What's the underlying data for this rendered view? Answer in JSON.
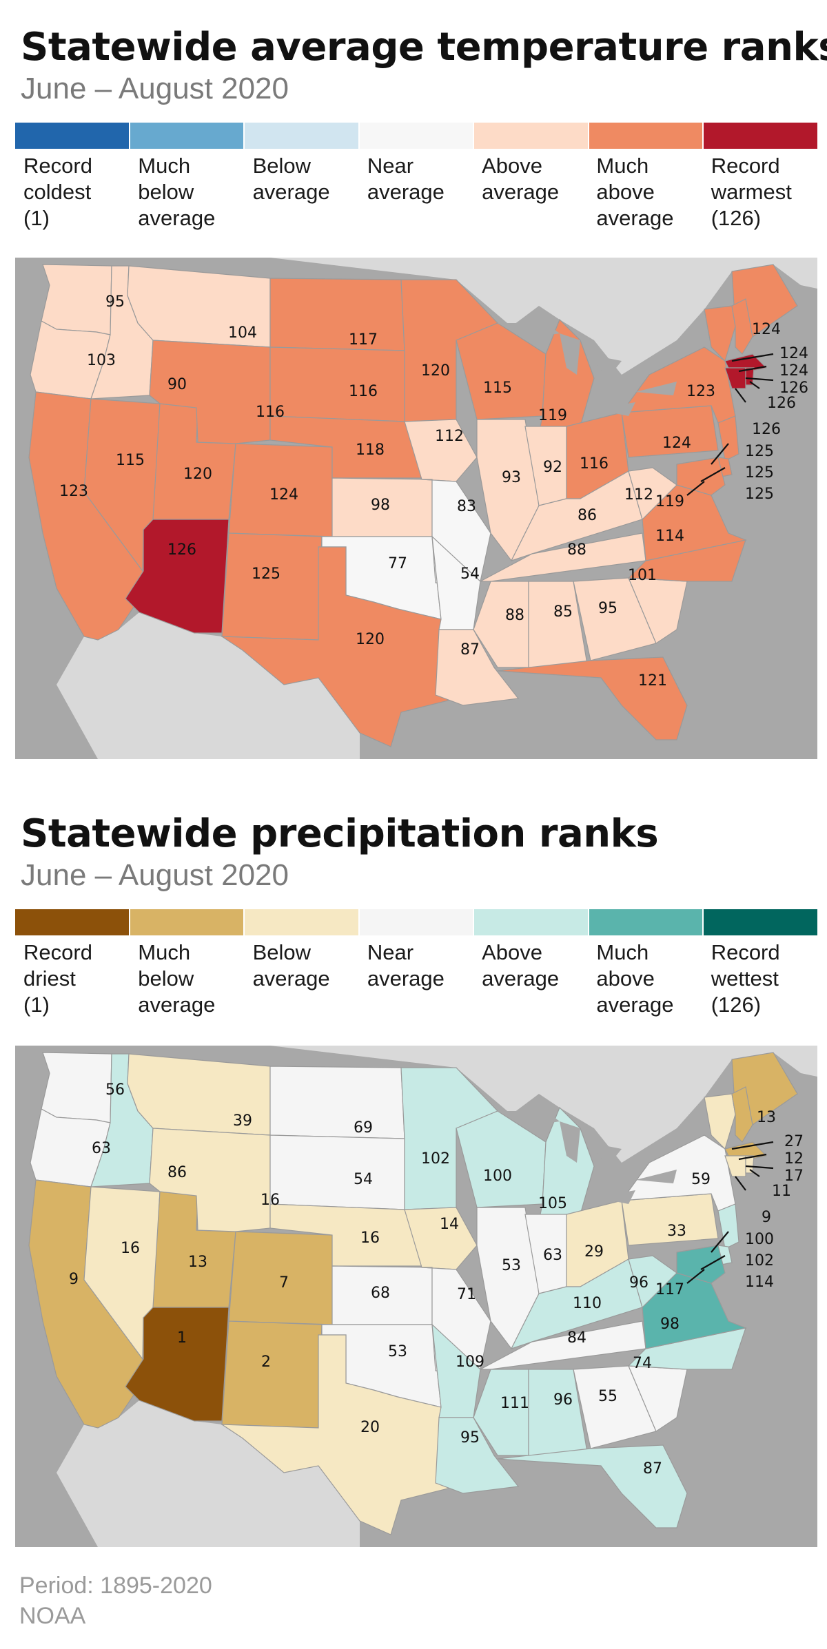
{
  "temperature": {
    "title": "Statewide average temperature ranks",
    "subtitle": "June – August 2020",
    "legend": [
      {
        "label": "Record\ncoldest\n(1)",
        "color": "#2166ac"
      },
      {
        "label": "Much\nbelow\naverage",
        "color": "#67a9cf"
      },
      {
        "label": "Below\naverage",
        "color": "#d1e5f0"
      },
      {
        "label": "Near\naverage",
        "color": "#f7f7f7"
      },
      {
        "label": "Above\naverage",
        "color": "#fddbc7"
      },
      {
        "label": "Much\nabove\naverage",
        "color": "#ef8a62"
      },
      {
        "label": "Record\nwarmest\n(126)",
        "color": "#b2182b"
      }
    ],
    "states": [
      {
        "state": "WA",
        "rank": "95",
        "category": 4
      },
      {
        "state": "OR",
        "rank": "103",
        "category": 4
      },
      {
        "state": "ID",
        "rank": "90",
        "category": 4
      },
      {
        "state": "MT",
        "rank": "104",
        "category": 4
      },
      {
        "state": "CA",
        "rank": "123",
        "category": 5
      },
      {
        "state": "NV",
        "rank": "115",
        "category": 5
      },
      {
        "state": "UT",
        "rank": "120",
        "category": 5
      },
      {
        "state": "AZ",
        "rank": "126",
        "category": 6
      },
      {
        "state": "WY",
        "rank": "116",
        "category": 5
      },
      {
        "state": "CO",
        "rank": "124",
        "category": 5
      },
      {
        "state": "NM",
        "rank": "125",
        "category": 5
      },
      {
        "state": "ND",
        "rank": "117",
        "category": 5
      },
      {
        "state": "SD",
        "rank": "116",
        "category": 5
      },
      {
        "state": "NE",
        "rank": "118",
        "category": 5
      },
      {
        "state": "KS",
        "rank": "98",
        "category": 4
      },
      {
        "state": "OK",
        "rank": "77",
        "category": 3
      },
      {
        "state": "TX",
        "rank": "120",
        "category": 5
      },
      {
        "state": "MN",
        "rank": "120",
        "category": 5
      },
      {
        "state": "IA",
        "rank": "112",
        "category": 4
      },
      {
        "state": "MO",
        "rank": "83",
        "category": 3
      },
      {
        "state": "AR",
        "rank": "54",
        "category": 3
      },
      {
        "state": "LA",
        "rank": "87",
        "category": 4
      },
      {
        "state": "WI",
        "rank": "115",
        "category": 5
      },
      {
        "state": "IL",
        "rank": "93",
        "category": 4
      },
      {
        "state": "MI",
        "rank": "119",
        "category": 5
      },
      {
        "state": "IN",
        "rank": "92",
        "category": 4
      },
      {
        "state": "OH",
        "rank": "116",
        "category": 5
      },
      {
        "state": "KY",
        "rank": "86",
        "category": 4
      },
      {
        "state": "TN",
        "rank": "88",
        "category": 4
      },
      {
        "state": "MS",
        "rank": "88",
        "category": 4
      },
      {
        "state": "AL",
        "rank": "85",
        "category": 4
      },
      {
        "state": "GA",
        "rank": "95",
        "category": 4
      },
      {
        "state": "FL",
        "rank": "121",
        "category": 5
      },
      {
        "state": "SC",
        "rank": "101",
        "category": 4
      },
      {
        "state": "NC",
        "rank": "114",
        "category": 5
      },
      {
        "state": "VA",
        "rank": "119",
        "category": 5
      },
      {
        "state": "WV",
        "rank": "112",
        "category": 4
      },
      {
        "state": "PA",
        "rank": "124",
        "category": 5
      },
      {
        "state": "NY",
        "rank": "123",
        "category": 5
      },
      {
        "state": "ME",
        "rank": "124",
        "category": 5
      },
      {
        "state": "VT",
        "rank": "124",
        "category": 5
      },
      {
        "state": "NH",
        "rank": "124",
        "category": 5
      },
      {
        "state": "MA",
        "rank": "126",
        "category": 6
      },
      {
        "state": "CT",
        "rank": "126",
        "category": 6
      },
      {
        "state": "RI",
        "rank": "126",
        "category": 6
      },
      {
        "state": "NJ",
        "rank": "125",
        "category": 5
      },
      {
        "state": "DE",
        "rank": "125",
        "category": 5
      },
      {
        "state": "MD",
        "rank": "125",
        "category": 5
      }
    ]
  },
  "precipitation": {
    "title": "Statewide precipitation ranks",
    "subtitle": "June – August 2020",
    "legend": [
      {
        "label": "Record\ndriest\n(1)",
        "color": "#8c510a"
      },
      {
        "label": "Much\nbelow\naverage",
        "color": "#d8b365"
      },
      {
        "label": "Below\naverage",
        "color": "#f6e8c3"
      },
      {
        "label": "Near\naverage",
        "color": "#f5f5f5"
      },
      {
        "label": "Above\naverage",
        "color": "#c7eae5"
      },
      {
        "label": "Much\nabove\naverage",
        "color": "#5ab4ac"
      },
      {
        "label": "Record\nwettest\n(126)",
        "color": "#01665e"
      }
    ],
    "states": [
      {
        "state": "WA",
        "rank": "56",
        "category": 3
      },
      {
        "state": "OR",
        "rank": "63",
        "category": 3
      },
      {
        "state": "ID",
        "rank": "86",
        "category": 4
      },
      {
        "state": "MT",
        "rank": "39",
        "category": 2
      },
      {
        "state": "CA",
        "rank": "9",
        "category": 1
      },
      {
        "state": "NV",
        "rank": "16",
        "category": 2
      },
      {
        "state": "UT",
        "rank": "13",
        "category": 1
      },
      {
        "state": "AZ",
        "rank": "1",
        "category": 0
      },
      {
        "state": "WY",
        "rank": "16",
        "category": 2
      },
      {
        "state": "CO",
        "rank": "7",
        "category": 1
      },
      {
        "state": "NM",
        "rank": "2",
        "category": 1
      },
      {
        "state": "ND",
        "rank": "69",
        "category": 3
      },
      {
        "state": "SD",
        "rank": "54",
        "category": 3
      },
      {
        "state": "NE",
        "rank": "16",
        "category": 2
      },
      {
        "state": "KS",
        "rank": "68",
        "category": 3
      },
      {
        "state": "OK",
        "rank": "53",
        "category": 3
      },
      {
        "state": "TX",
        "rank": "20",
        "category": 2
      },
      {
        "state": "MN",
        "rank": "102",
        "category": 4
      },
      {
        "state": "IA",
        "rank": "14",
        "category": 2
      },
      {
        "state": "MO",
        "rank": "71",
        "category": 3
      },
      {
        "state": "AR",
        "rank": "109",
        "category": 4
      },
      {
        "state": "LA",
        "rank": "95",
        "category": 4
      },
      {
        "state": "WI",
        "rank": "100",
        "category": 4
      },
      {
        "state": "IL",
        "rank": "53",
        "category": 3
      },
      {
        "state": "MI",
        "rank": "105",
        "category": 4
      },
      {
        "state": "IN",
        "rank": "63",
        "category": 3
      },
      {
        "state": "OH",
        "rank": "29",
        "category": 2
      },
      {
        "state": "KY",
        "rank": "110",
        "category": 4
      },
      {
        "state": "TN",
        "rank": "84",
        "category": 3
      },
      {
        "state": "MS",
        "rank": "111",
        "category": 4
      },
      {
        "state": "AL",
        "rank": "96",
        "category": 4
      },
      {
        "state": "GA",
        "rank": "55",
        "category": 3
      },
      {
        "state": "FL",
        "rank": "87",
        "category": 4
      },
      {
        "state": "SC",
        "rank": "74",
        "category": 3
      },
      {
        "state": "NC",
        "rank": "98",
        "category": 4
      },
      {
        "state": "VA",
        "rank": "117",
        "category": 5
      },
      {
        "state": "WV",
        "rank": "96",
        "category": 4
      },
      {
        "state": "PA",
        "rank": "33",
        "category": 2
      },
      {
        "state": "NY",
        "rank": "59",
        "category": 3
      },
      {
        "state": "ME",
        "rank": "13",
        "category": 1
      },
      {
        "state": "VT",
        "rank": "27",
        "category": 2
      },
      {
        "state": "NH",
        "rank": "12",
        "category": 1
      },
      {
        "state": "MA",
        "rank": "17",
        "category": 1
      },
      {
        "state": "CT",
        "rank": "9",
        "category": 2
      },
      {
        "state": "RI",
        "rank": "11",
        "category": 2
      },
      {
        "state": "NJ",
        "rank": "100",
        "category": 4
      },
      {
        "state": "DE",
        "rank": "102",
        "category": 4
      },
      {
        "state": "MD",
        "rank": "114",
        "category": 5
      }
    ]
  },
  "map_colors": {
    "ocean": "#a8a8a8",
    "land": "#d9d9d9",
    "lakes": "#a8a8a8"
  },
  "footer": {
    "period": "Period: 1895-2020",
    "source": "NOAA"
  }
}
